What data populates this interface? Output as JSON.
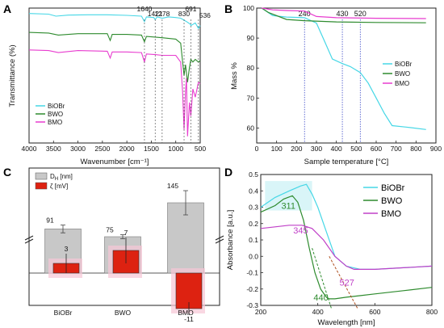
{
  "figure": {
    "panels": [
      {
        "letter": "A",
        "type": "line",
        "xlabel": "Wavenumber [cm⁻¹]",
        "ylabel": "Transmittance (%)",
        "xlim": [
          4000,
          500
        ],
        "xticks": [
          4000,
          3500,
          3000,
          2500,
          2000,
          1500,
          1000,
          500
        ],
        "reversed_x": true,
        "y_ticks_shown": false,
        "peak_markers": [
          1640,
          1421,
          1278,
          830,
          691,
          536
        ],
        "legend_position": "bottom-left",
        "series": [
          {
            "name": "BiOBr",
            "color": "#46d7e6",
            "x": [
              4000,
              3600,
              3450,
              3200,
              2800,
              2400,
              2000,
              1700,
              1640,
              1600,
              1450,
              1421,
              1380,
              1278,
              1150,
              1000,
              900,
              830,
              780,
              700,
              691,
              600,
              536,
              500
            ],
            "y": [
              96,
              95.5,
              94,
              94.8,
              95,
              95,
              94.6,
              94,
              90,
              93.5,
              93,
              91.5,
              93.5,
              92.5,
              93.5,
              93,
              92.5,
              91,
              90,
              88,
              87,
              89,
              85,
              87
            ]
          },
          {
            "name": "BWO",
            "color": "#2e8b2e",
            "x": [
              4000,
              3600,
              3400,
              3000,
              2400,
              2340,
              2300,
              2000,
              1700,
              1640,
              1600,
              1421,
              1278,
              1000,
              900,
              830,
              800,
              760,
              720,
              691,
              650,
              600,
              536,
              500
            ],
            "y": [
              82,
              81.5,
              80,
              81,
              81,
              76,
              80.5,
              80.5,
              80,
              75,
              79,
              78.5,
              78,
              77,
              74,
              50,
              58,
              45,
              56,
              62,
              60,
              62,
              60,
              61
            ]
          },
          {
            "name": "BMO",
            "color": "#e83ccf",
            "x": [
              4000,
              3600,
              3400,
              3000,
              2400,
              2340,
              2300,
              2000,
              1700,
              1640,
              1600,
              1421,
              1278,
              1000,
              900,
              860,
              830,
              800,
              780,
              760,
              720,
              691,
              650,
              600,
              536,
              500
            ],
            "y": [
              69,
              68.5,
              67,
              68.5,
              68,
              63,
              67.5,
              67.5,
              67,
              60,
              66,
              65.5,
              65,
              65,
              60,
              38,
              10,
              38,
              48,
              5,
              30,
              20,
              40,
              34,
              45,
              44
            ]
          }
        ]
      },
      {
        "letter": "B",
        "type": "line",
        "xlabel": "Sample temperature [°C]",
        "ylabel": "Mass %",
        "xlim": [
          0,
          900
        ],
        "ylim": [
          55,
          100
        ],
        "xticks": [
          0,
          100,
          200,
          300,
          400,
          500,
          600,
          700,
          800,
          900
        ],
        "yticks": [
          60,
          70,
          80,
          90,
          100
        ],
        "vlines": [
          240,
          430,
          520
        ],
        "legend_position": "center-right",
        "series": [
          {
            "name": "BiOBr",
            "color": "#46d7e6",
            "x": [
              25,
              80,
              150,
              240,
              300,
              340,
              380,
              430,
              470,
              520,
              560,
              600,
              640,
              680,
              750,
              850
            ],
            "y": [
              100,
              97.5,
              97,
              96.8,
              95,
              89,
              83,
              81.5,
              80.5,
              78.5,
              75,
              70,
              65,
              60.8,
              60.3,
              59.5
            ]
          },
          {
            "name": "BWO",
            "color": "#2e8b2e",
            "x": [
              25,
              60,
              150,
              240,
              400,
              600,
              850
            ],
            "y": [
              100,
              98.5,
              96.2,
              95.8,
              95.4,
              95.2,
              95.1
            ]
          },
          {
            "name": "BMO",
            "color": "#e83ccf",
            "x": [
              25,
              80,
              150,
              240,
              300,
              400,
              600,
              850
            ],
            "y": [
              100,
              99.4,
              99.2,
              99,
              97.2,
              96.8,
              96.6,
              96.5
            ]
          }
        ]
      },
      {
        "letter": "C",
        "type": "bar",
        "categories": [
          "BiOBr",
          "BWO",
          "BMO"
        ],
        "series": [
          {
            "name": "D_H [nm]",
            "legend_main": "D",
            "legend_sub": "H",
            "legend_rest": " [nm]",
            "color": "#c8c8c8",
            "values": [
              91,
              75,
              145
            ],
            "errors": [
              8,
              4,
              25
            ]
          },
          {
            "name": "ζ [mV]",
            "legend_main": "ζ",
            "legend_sub": "",
            "legend_rest": " [mV]",
            "color": "#dd2211",
            "values": [
              3,
              7,
              -11
            ],
            "errors": [
              3,
              4,
              2
            ]
          }
        ],
        "value_labels": [
          "91",
          "3",
          "75",
          "7",
          "145",
          "-11"
        ],
        "axis_break": true
      },
      {
        "letter": "D",
        "type": "line",
        "xlabel": "Wavelength [nm]",
        "ylabel": "Absorbance [a.u.]",
        "xlim": [
          200,
          800
        ],
        "ylim": [
          -0.3,
          0.5
        ],
        "xticks": [
          200,
          400,
          600,
          800
        ],
        "yticks": [
          -0.3,
          -0.2,
          -0.1,
          0.0,
          0.1,
          0.2,
          0.3,
          0.4,
          0.5
        ],
        "ytick_labels": [
          "-0.3",
          "-0.2",
          "-0.1",
          "0.0",
          "0.1",
          "0.2",
          "0.3",
          "0.4",
          "0.5"
        ],
        "legend_position": "top-right",
        "annotations": [
          {
            "text": "311",
            "color": "#2e8b2e"
          },
          {
            "text": "345",
            "color": "#c040c8"
          },
          {
            "text": "440",
            "color": "#2e8b2e"
          },
          {
            "text": "527",
            "color": "#c040c8"
          }
        ],
        "series": [
          {
            "name": "BiOBr",
            "color": "#46d7e6",
            "x": [
              200,
              250,
              300,
              340,
              360,
              380,
              400,
              430,
              460,
              500,
              550,
              600,
              700,
              800
            ],
            "y": [
              0.3,
              0.36,
              0.4,
              0.43,
              0.44,
              0.38,
              0.3,
              0.15,
              0.0,
              -0.06,
              -0.08,
              -0.08,
              -0.07,
              -0.06
            ]
          },
          {
            "name": "BWO",
            "color": "#2e8b2e",
            "x": [
              200,
              250,
              280,
              311,
              330,
              350,
              370,
              390,
              410,
              430,
              440,
              460,
              500,
              550,
              600,
              700,
              800
            ],
            "y": [
              0.27,
              0.31,
              0.35,
              0.37,
              0.33,
              0.22,
              0.05,
              -0.1,
              -0.2,
              -0.25,
              -0.26,
              -0.26,
              -0.25,
              -0.24,
              -0.23,
              -0.21,
              -0.19
            ]
          },
          {
            "name": "BMO",
            "color": "#c040c8",
            "x": [
              200,
              250,
              300,
              345,
              380,
              420,
              460,
              500,
              527,
              560,
              600,
              700,
              800
            ],
            "y": [
              0.17,
              0.18,
              0.19,
              0.19,
              0.17,
              0.1,
              0.0,
              -0.06,
              -0.08,
              -0.08,
              -0.08,
              -0.07,
              -0.06
            ]
          }
        ]
      }
    ]
  }
}
